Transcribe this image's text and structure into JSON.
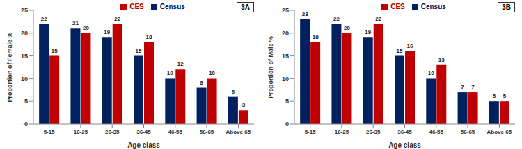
{
  "chart_data": [
    {
      "type": "bar",
      "annotation": "3A",
      "x_label": "Age class",
      "y_label": "Proportion of Female %",
      "categories": [
        "5-15",
        "16-25",
        "26-35",
        "36-45",
        "46-55",
        "56-65",
        "Above 65"
      ],
      "series": [
        {
          "name": "Census",
          "color": "#002060",
          "values": [
            22,
            21,
            19,
            15,
            10,
            8,
            6
          ]
        },
        {
          "name": "CES",
          "color": "#C00000",
          "values": [
            15,
            20,
            22,
            18,
            12,
            10,
            3
          ]
        }
      ],
      "ylim": [
        0,
        25
      ],
      "yticks": [
        0,
        5,
        10,
        15,
        20,
        25
      ],
      "grid": false,
      "legend": "top",
      "data_labels": true
    },
    {
      "type": "bar",
      "annotation": "3B",
      "x_label": "Age class",
      "y_label": "Proportion of Male %",
      "categories": [
        "5-15",
        "16-25",
        "26-35",
        "36-45",
        "46-55",
        "56-65",
        "Above 65"
      ],
      "series": [
        {
          "name": "Census",
          "color": "#002060",
          "values": [
            23,
            22,
            19,
            15,
            10,
            7,
            5
          ]
        },
        {
          "name": "CES",
          "color": "#C00000",
          "values": [
            18,
            20,
            22,
            16,
            13,
            7,
            5
          ]
        }
      ],
      "ylim": [
        0,
        25
      ],
      "yticks": [
        0,
        5,
        10,
        15,
        20,
        25
      ],
      "grid": false,
      "legend": "top",
      "data_labels": true
    }
  ]
}
